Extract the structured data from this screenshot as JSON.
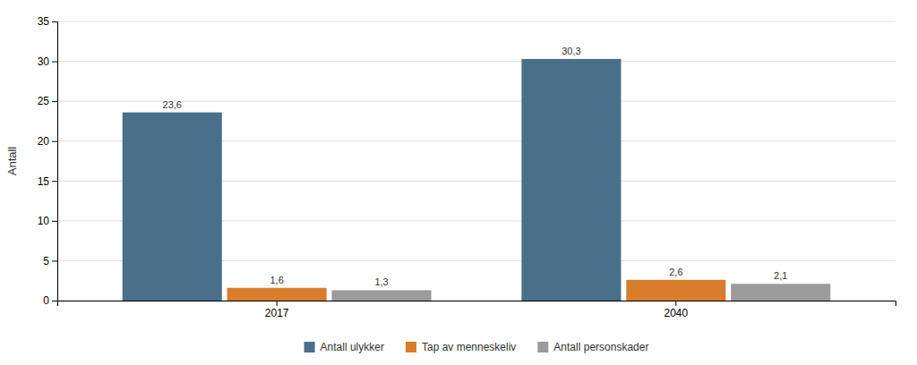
{
  "chart_data": {
    "type": "bar",
    "categories": [
      "2017",
      "2040"
    ],
    "series": [
      {
        "name": "Antall ulykker",
        "color": "#4a6f8a",
        "values": [
          23.6,
          30.3
        ],
        "value_labels": [
          "23,6",
          "30,3"
        ]
      },
      {
        "name": "Tap av menneskeliv",
        "color": "#d97c2b",
        "values": [
          1.6,
          2.6
        ],
        "value_labels": [
          "1,6",
          "2,6"
        ]
      },
      {
        "name": "Antall personskader",
        "color": "#9b9b9b",
        "values": [
          1.3,
          2.1
        ],
        "value_labels": [
          "1,3",
          "2,1"
        ]
      }
    ],
    "ylabel": "Antall",
    "ylim": [
      0,
      35
    ],
    "yticks": [
      0,
      5,
      10,
      15,
      20,
      25,
      30,
      35
    ],
    "grid": true,
    "legend": "bottom",
    "data_labels": true
  }
}
